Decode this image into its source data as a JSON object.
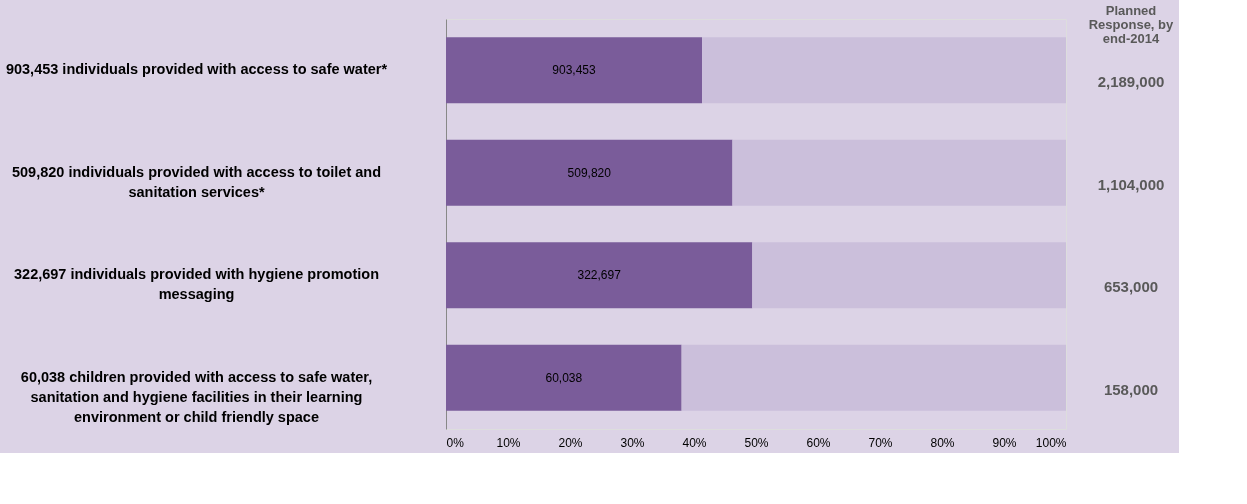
{
  "chart_data": {
    "type": "bar",
    "orientation": "horizontal",
    "stacked": true,
    "categories": [
      "903,453 individuals provided with access to safe water*",
      "509,820 individuals provided with access to toilet and sanitation services*",
      "322,697 individuals provided with hygiene promotion messaging",
      "60,038 children provided with access to safe water, sanitation and hygiene facilities in their learning environment or child friendly space"
    ],
    "series": [
      {
        "color": "#7a5c9a",
        "values": [
          41.3,
          46.2,
          49.4,
          38.0
        ]
      },
      {
        "color": "#cbbfdb",
        "values": [
          58.7,
          53.8,
          50.6,
          62.0
        ]
      }
    ],
    "xlim": [
      0,
      100
    ],
    "xticks": [
      {
        "value": 0,
        "label": "0%"
      },
      {
        "value": 10,
        "label": "10%"
      },
      {
        "value": 20,
        "label": "20%"
      },
      {
        "value": 30,
        "label": "30%"
      },
      {
        "value": 40,
        "label": "40%"
      },
      {
        "value": 50,
        "label": "50%"
      },
      {
        "value": 60,
        "label": "60%"
      },
      {
        "value": 70,
        "label": "70%"
      },
      {
        "value": 80,
        "label": "80%"
      },
      {
        "value": 90,
        "label": "90%"
      },
      {
        "value": 100,
        "label": "100%"
      }
    ],
    "annotations": [
      "Planned Response, by end-2014",
      "903,453",
      "509,820",
      "322,697",
      "60,038",
      "2,189,000",
      "1,104,000",
      "653,000",
      "158,000"
    ],
    "grid": false
  }
}
